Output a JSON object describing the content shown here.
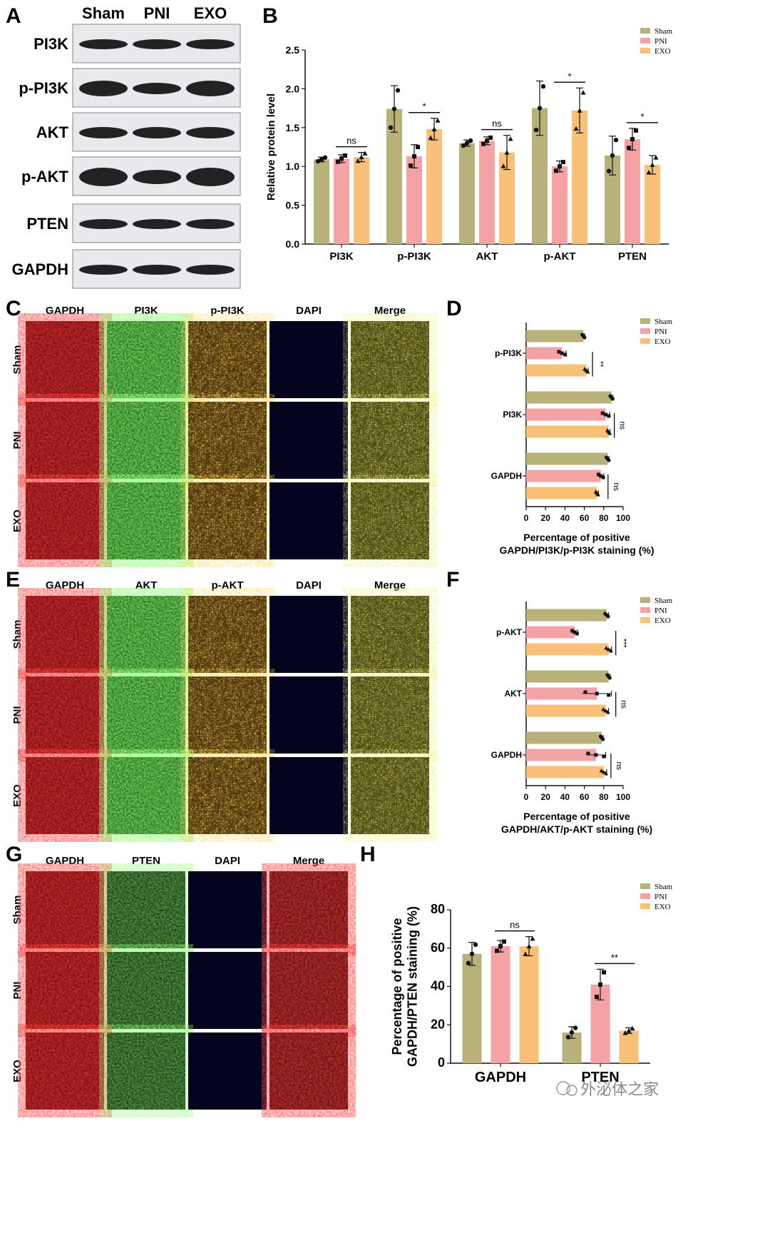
{
  "colors": {
    "sham": "#b8b27a",
    "pni": "#f4a2a4",
    "exo": "#f9c07a",
    "axis": "#111111"
  },
  "legend": [
    "Sham",
    "PNI",
    "EXO"
  ],
  "panel_letters": [
    "A",
    "B",
    "C",
    "D",
    "E",
    "F",
    "G",
    "H"
  ],
  "panelA": {
    "columns": [
      "Sham",
      "PNI",
      "EXO"
    ],
    "rows": [
      "PI3K",
      "p-PI3K",
      "AKT",
      "p-AKT",
      "PTEN",
      "GAPDH"
    ]
  },
  "panelC": {
    "columns": [
      "GAPDH",
      "PI3K",
      "p-PI3K",
      "DAPI",
      "Merge"
    ],
    "rows": [
      "Sham",
      "PNI",
      "EXO"
    ]
  },
  "panelE": {
    "columns": [
      "GAPDH",
      "AKT",
      "p-AKT",
      "DAPI",
      "Merge"
    ],
    "rows": [
      "Sham",
      "PNI",
      "EXO"
    ]
  },
  "panelG": {
    "columns": [
      "GAPDH",
      "PTEN",
      "DAPI",
      "Merge"
    ],
    "rows": [
      "Sham",
      "PNI",
      "EXO"
    ]
  },
  "watermark": "外泌体之家",
  "chart_data": [
    {
      "panel": "B",
      "type": "bar",
      "orientation": "vertical",
      "categories": [
        "PI3K",
        "p-PI3K",
        "AKT",
        "p-AKT",
        "PTEN"
      ],
      "ylabel": "Relative protein level",
      "ylim": [
        0,
        2.5
      ],
      "yticks": [
        "0.0",
        "0.5",
        "1.0",
        "1.5",
        "2.0",
        "2.5"
      ],
      "ytick_values": [
        0,
        0.5,
        1,
        1.5,
        2,
        2.5
      ],
      "legend_position": "top-right",
      "series": [
        {
          "name": "Sham",
          "values": [
            1.09,
            1.74,
            1.3,
            1.75,
            1.14
          ],
          "errors": [
            0.03,
            0.3,
            0.04,
            0.35,
            0.25
          ]
        },
        {
          "name": "PNI",
          "values": [
            1.1,
            1.13,
            1.33,
            1.0,
            1.35
          ],
          "errors": [
            0.05,
            0.15,
            0.05,
            0.07,
            0.14
          ]
        },
        {
          "name": "EXO",
          "values": [
            1.12,
            1.48,
            1.18,
            1.72,
            1.02
          ],
          "errors": [
            0.06,
            0.14,
            0.22,
            0.29,
            0.12
          ]
        }
      ],
      "annotations": [
        {
          "cat": 0,
          "from": 1,
          "to": 2,
          "text": "ns"
        },
        {
          "cat": 1,
          "from": 1,
          "to": 2,
          "text": "*"
        },
        {
          "cat": 2,
          "from": 1,
          "to": 2,
          "text": "ns"
        },
        {
          "cat": 3,
          "from": 1,
          "to": 2,
          "text": "*"
        },
        {
          "cat": 4,
          "from": 1,
          "to": 2,
          "text": "*"
        }
      ]
    },
    {
      "panel": "D",
      "type": "bar",
      "orientation": "horizontal",
      "categories": [
        "p-PI3K",
        "PI3K",
        "GAPDH"
      ],
      "xlabel": [
        "Percentage of positive",
        "GAPDH/PI3K/p-PI3K staining (%)"
      ],
      "xlim": [
        0,
        100
      ],
      "xticks": [
        "0",
        "20",
        "40",
        "60",
        "80",
        "100"
      ],
      "xtick_values": [
        0,
        20,
        40,
        60,
        80,
        100
      ],
      "legend_position": "top-right",
      "series": [
        {
          "name": "Sham",
          "values": [
            59,
            88,
            84
          ],
          "errors": [
            1.5,
            1.5,
            1.5
          ]
        },
        {
          "name": "PNI",
          "values": [
            37,
            82,
            77
          ],
          "errors": [
            4,
            4,
            3
          ]
        },
        {
          "name": "EXO",
          "values": [
            62,
            85,
            73
          ],
          "errors": [
            2,
            1.5,
            1.5
          ]
        }
      ],
      "annotations": [
        {
          "cat": 0,
          "text": "**"
        },
        {
          "cat": 1,
          "text": "ns"
        },
        {
          "cat": 2,
          "text": "ns"
        }
      ]
    },
    {
      "panel": "F",
      "type": "bar",
      "orientation": "horizontal",
      "categories": [
        "p-AKT",
        "AKT",
        "GAPDH"
      ],
      "xlabel": [
        "Percentage of positive",
        "GAPDH/AKT/p-AKT staining (%)"
      ],
      "xlim": [
        0,
        100
      ],
      "xticks": [
        "0",
        "20",
        "40",
        "60",
        "80",
        "100"
      ],
      "xtick_values": [
        0,
        20,
        40,
        60,
        80,
        100
      ],
      "legend_position": "top-right",
      "series": [
        {
          "name": "Sham",
          "values": [
            83,
            85,
            78
          ],
          "errors": [
            2,
            1.5,
            1.5
          ]
        },
        {
          "name": "PNI",
          "values": [
            50,
            73,
            72
          ],
          "errors": [
            3,
            15,
            10
          ]
        },
        {
          "name": "EXO",
          "values": [
            85,
            82,
            80
          ],
          "errors": [
            3,
            3,
            3
          ]
        }
      ],
      "annotations": [
        {
          "cat": 0,
          "text": "***"
        },
        {
          "cat": 1,
          "text": "ns"
        },
        {
          "cat": 2,
          "text": "ns"
        }
      ]
    },
    {
      "panel": "H",
      "type": "bar",
      "orientation": "vertical",
      "categories": [
        "GAPDH",
        "PTEN"
      ],
      "ylabel": [
        "Percentage of positive",
        "GAPDH/PTEN staining (%)"
      ],
      "ylim": [
        0,
        80
      ],
      "yticks": [
        "0",
        "20",
        "40",
        "60",
        "80"
      ],
      "ytick_values": [
        0,
        20,
        40,
        60,
        80
      ],
      "legend_position": "top-right",
      "series": [
        {
          "name": "Sham",
          "values": [
            57,
            16
          ],
          "errors": [
            6,
            3
          ]
        },
        {
          "name": "PNI",
          "values": [
            61,
            41
          ],
          "errors": [
            3,
            8
          ]
        },
        {
          "name": "EXO",
          "values": [
            61,
            17
          ],
          "errors": [
            5,
            1.5
          ]
        }
      ],
      "annotations": [
        {
          "cat": 0,
          "from": 1,
          "to": 2,
          "text": "ns"
        },
        {
          "cat": 1,
          "from": 1,
          "to": 2,
          "text": "**"
        }
      ]
    }
  ]
}
